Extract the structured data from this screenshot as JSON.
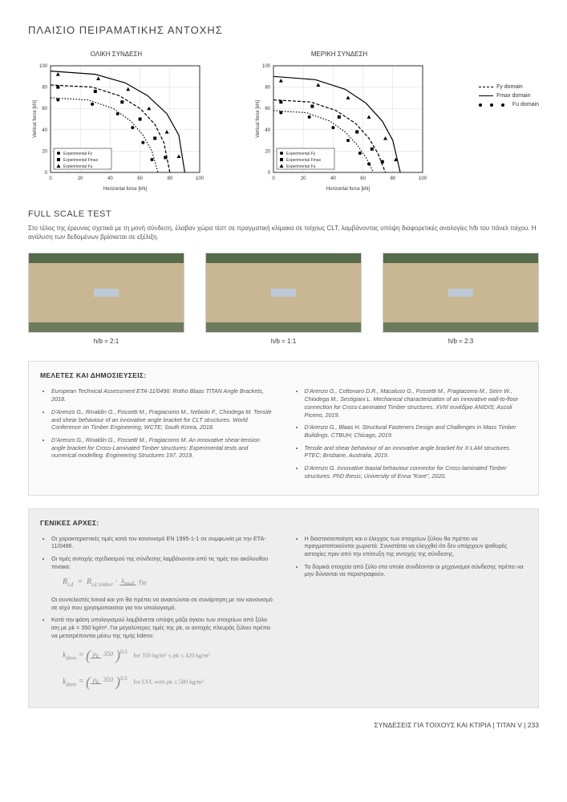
{
  "title": "ΠΛΑΙΣΙΟ ΠΕΙΡΑΜΑΤΙΚΗΣ ΑΝΤΟΧΗΣ",
  "charts": {
    "left_title": "ΟΛΙΚΗ ΣΥΝΔΕΣΗ",
    "right_title": "ΜΕΡΙΚΗ ΣΥΝΔΕΣΗ",
    "xlabel": "Horizontal force [kN]",
    "ylabel": "Vertical force [kN]",
    "xlim": [
      0,
      100
    ],
    "ylim": [
      0,
      100
    ],
    "ticks": [
      0,
      20,
      40,
      60,
      80,
      100
    ],
    "legend_inside": [
      "Experimental Fy",
      "Experimental Fmax",
      "Experimental Fu"
    ],
    "legend_outside": [
      "Fy domain",
      "Fmax domain",
      "Fu domain"
    ],
    "curve_color": "#000000",
    "marker_color": "#000000",
    "grid_color": "#d8d8d8",
    "bg": "#ffffff",
    "left": {
      "curve_outer": [
        [
          0,
          95
        ],
        [
          30,
          92
        ],
        [
          50,
          84
        ],
        [
          65,
          72
        ],
        [
          78,
          55
        ],
        [
          86,
          35
        ],
        [
          90,
          0
        ]
      ],
      "curve_mid": [
        [
          0,
          82
        ],
        [
          28,
          80
        ],
        [
          46,
          72
        ],
        [
          60,
          60
        ],
        [
          70,
          45
        ],
        [
          76,
          28
        ],
        [
          80,
          0
        ]
      ],
      "curve_inner": [
        [
          0,
          70
        ],
        [
          25,
          68
        ],
        [
          42,
          60
        ],
        [
          54,
          48
        ],
        [
          62,
          35
        ],
        [
          68,
          20
        ],
        [
          72,
          0
        ]
      ],
      "pts_circle": [
        [
          5,
          68
        ],
        [
          28,
          64
        ],
        [
          45,
          55
        ],
        [
          55,
          42
        ],
        [
          62,
          28
        ],
        [
          68,
          12
        ]
      ],
      "pts_square": [
        [
          5,
          80
        ],
        [
          30,
          76
        ],
        [
          48,
          66
        ],
        [
          60,
          50
        ],
        [
          70,
          32
        ],
        [
          77,
          14
        ]
      ],
      "pts_tri": [
        [
          5,
          92
        ],
        [
          32,
          88
        ],
        [
          52,
          78
        ],
        [
          66,
          60
        ],
        [
          78,
          38
        ],
        [
          86,
          15
        ]
      ]
    },
    "right": {
      "curve_outer": [
        [
          0,
          90
        ],
        [
          28,
          87
        ],
        [
          48,
          78
        ],
        [
          62,
          65
        ],
        [
          73,
          48
        ],
        [
          80,
          30
        ],
        [
          85,
          0
        ]
      ],
      "curve_mid": [
        [
          0,
          68
        ],
        [
          25,
          66
        ],
        [
          42,
          58
        ],
        [
          55,
          46
        ],
        [
          64,
          32
        ],
        [
          70,
          18
        ],
        [
          75,
          0
        ]
      ],
      "curve_inner": [
        [
          0,
          58
        ],
        [
          22,
          56
        ],
        [
          38,
          48
        ],
        [
          48,
          38
        ],
        [
          56,
          26
        ],
        [
          62,
          14
        ],
        [
          67,
          0
        ]
      ],
      "pts_circle": [
        [
          5,
          56
        ],
        [
          24,
          52
        ],
        [
          40,
          42
        ],
        [
          50,
          30
        ],
        [
          58,
          18
        ],
        [
          64,
          8
        ]
      ],
      "pts_square": [
        [
          5,
          66
        ],
        [
          26,
          62
        ],
        [
          44,
          52
        ],
        [
          56,
          38
        ],
        [
          66,
          22
        ],
        [
          73,
          10
        ]
      ],
      "pts_tri": [
        [
          5,
          86
        ],
        [
          30,
          82
        ],
        [
          50,
          70
        ],
        [
          64,
          52
        ],
        [
          75,
          32
        ],
        [
          82,
          12
        ]
      ]
    }
  },
  "full_scale": {
    "heading": "FULL SCALE TEST",
    "text": "Στο τέλος της έρευνας σχετικά με τη μονή σύνδεση, έλαβαν χώρα τέστ σε πραγματική κλίμακα σε τοίχους CLT, λαμβάνοντας υπόψη διαφορετικές αναλογίες h/b του πάνελ τοίχου. Η ανάλυση των δεδομένων βρίσκεται σε εξέλιξη.",
    "labels": [
      "h/b = 2:1",
      "h/b = 1:1",
      "h/b = 2:3"
    ]
  },
  "refs": {
    "heading": "ΜΕΛΕΤΕΣ ΚΑΙ ΔΗΜΟΣΙΕΥΣΕΙΣ:",
    "left": [
      "European Technical Assessment ETA-11/0496: Rotho Blaas TITAN Angle Brackets, 2018.",
      "D'Arenzo G., Rinaldin G., Fossetti M., Fragiacomo M., Nebiolo F., Chiodega M. Tensile and shear behaviour of an innovative angle bracket for CLT structures. World Conference on Timber Engineering, WCTE; South Korea, 2018.",
      "D'Arenzo G., Rinaldin G., Fossetti M., Fragiacomo M. An innovative shear-tension angle bracket for Cross-Laminated Timber structures: Experimental tests and numerical modelling. Engineering Structures 197, 2019."
    ],
    "right": [
      "D'Arenzo G., Cottonaro D.R., Macaluso G., Fossetti M., Fragiacomo M., Seim W., Chiodega M., Sestigiani L. Mechanical characterization of an innovative wall-to-floor connection for Cross-Laminated Timber structures. XVIII συνέδριο ANIDIS; Ascoli Piceno, 2019.",
      "D'Arenzo G., Blaas H. Structural Fasteners Design and Challenges in Mass Timber Buildings. CTBUH; Chicago, 2019.",
      "Tensile and shear behaviour of an innovative angle bracket for X-LAM structures. PTEC; Brisbane, Australia, 2019.",
      "D'Arenzo G. Innovative biaxial behaviour connector for Cross-laminated Timber structures. PhD thesis; University of Enna \"Kore\", 2020."
    ]
  },
  "principles": {
    "heading": "ΓΕΝΙΚΕΣ ΑΡΧΕΣ:",
    "l1": "Οι χαρακτηριστικές τιμές κατά τον κανονισμό EN 1995-1-1 σε συμφωνία με την ETA-11/0496.",
    "l2": "Οι τιμές αντοχής σχεδιασμού της σύνδεσης λαμβάνονται από τις τιμές του ακόλουθου πίνακα:",
    "l3": "Οι συντελεστές kmod και γm θα πρέπει να ανακτώνται σε συνάρτηση με τον κανονισμό σε ισχύ που χρησιμοποιείται για τον υπολογισμό.",
    "l4": "Κατά την φάση υπολογισμού λαμβάνεται υπόψη μάζα όγκου των στοιχείων από ξύλο ίση με ρk = 350 kg/m³. Για μεγαλύτερες τιμές της ρk, οι αντοχές πλευράς ξύλου πρέπει να μετατρέπονται μέσω της τιμής kdens:",
    "r1": "Η διαστασιοποίηση και ο έλεγχος των στοιχείων ξύλου θα πρέπει να πραγματοποιούνται χωριστά. Συνιστάται να ελεγχθεί ότι δεν υπάρχουν ψαθυρές αστοχίες πριν από την επίτευξη της αντοχής της σύνδεσης.",
    "r2": "Τα δομικά στοιχεία από ξύλο στα οποία συνδέονται οι μηχανισμοί σύνδεσης πρέπει να μην δύνανται να περιστραφούν.",
    "f1_cond": "for 350 kg/m³  ≤  ρk  ≤  420 kg/m³",
    "f2_cond": "for LVL with  ρk  ≤  500 kg/m³"
  },
  "footer": "ΣΥΝΔΕΣΕΙΣ ΓΙΑ ΤΟΙΧΟΥΣ  ΚΑΙ ΚΤΙΡΙΑ  |  TITAN V  |  233"
}
